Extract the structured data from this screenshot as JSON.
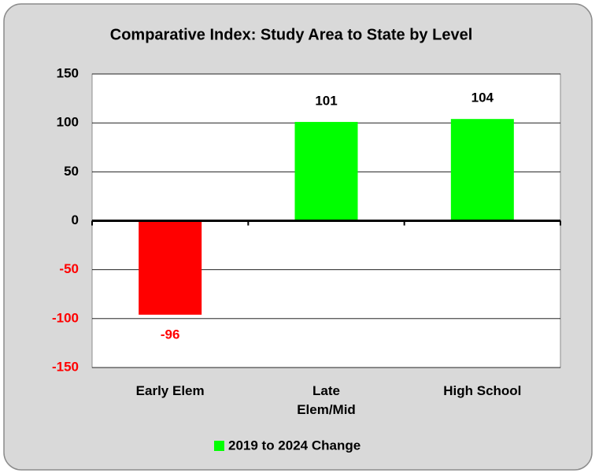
{
  "chart_data": {
    "type": "bar",
    "title": "Comparative Index: Study Area to State by Level",
    "categories": [
      "Early Elem",
      "Late Elem/Mid",
      "High School"
    ],
    "series": [
      {
        "name": "2019 to 2024 Change",
        "color": "#00ff00",
        "values": [
          -96,
          101,
          104
        ],
        "point_colors": [
          "#ff0000",
          "#00ff00",
          "#00ff00"
        ]
      }
    ],
    "ylim": [
      -150,
      150
    ],
    "yticks": [
      -150,
      -100,
      -50,
      0,
      50,
      100,
      150
    ],
    "negative_label_color": "#ff0000",
    "grid": true,
    "legend": "bottom"
  }
}
